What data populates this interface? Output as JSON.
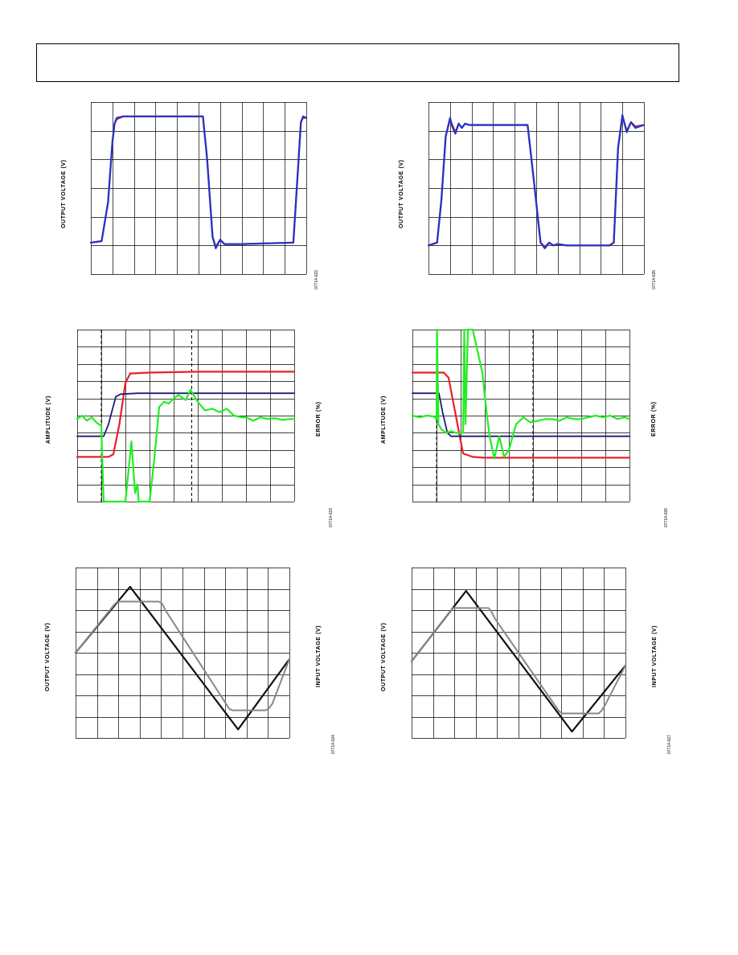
{
  "page": {
    "header": ""
  },
  "colors": {
    "red": "#e8202a",
    "blue": "#2233cc",
    "navy": "#1a1f6e",
    "green": "#22ee22",
    "black": "#111111",
    "gray": "#888888",
    "grid": "#000000"
  },
  "chart_data": [
    {
      "type": "line",
      "panel": "step-response-left",
      "ylabel": "OUTPUT VOLTAGE (V)",
      "figure_id": "07714-022",
      "grid": true,
      "grid_divisions": [
        10,
        6
      ],
      "xlim": [
        0,
        10
      ],
      "ylim": [
        0,
        6
      ],
      "series": [
        {
          "color": "red",
          "x": [
            0,
            0.5,
            0.8,
            1.0,
            1.1,
            1.2,
            1.5,
            5.2,
            5.4,
            5.65,
            5.8,
            6.0,
            6.2,
            6.4,
            7.0,
            9.4,
            9.6,
            9.75,
            9.85,
            10
          ],
          "y": [
            1.1,
            1.15,
            2.5,
            4.6,
            5.25,
            5.4,
            5.5,
            5.5,
            4.0,
            1.3,
            0.95,
            1.2,
            1.05,
            1.05,
            1.05,
            1.1,
            3.5,
            5.3,
            5.45,
            5.45
          ]
        },
        {
          "color": "blue",
          "x": [
            0,
            0.5,
            0.8,
            1.0,
            1.1,
            1.2,
            1.5,
            5.2,
            5.4,
            5.65,
            5.8,
            6.0,
            6.2,
            6.4,
            7.0,
            9.4,
            9.6,
            9.75,
            9.85,
            10
          ],
          "y": [
            1.1,
            1.15,
            2.5,
            4.6,
            5.25,
            5.45,
            5.5,
            5.5,
            4.0,
            1.3,
            0.9,
            1.2,
            1.05,
            1.05,
            1.05,
            1.1,
            3.5,
            5.3,
            5.5,
            5.45
          ]
        }
      ]
    },
    {
      "type": "line",
      "panel": "step-response-right",
      "ylabel": "OUTPUT VOLTAGE (V)",
      "figure_id": "07714-025",
      "grid": true,
      "grid_divisions": [
        10,
        6
      ],
      "xlim": [
        0,
        10
      ],
      "ylim": [
        0,
        6
      ],
      "series": [
        {
          "color": "red",
          "x": [
            0,
            0.4,
            0.6,
            0.8,
            1.0,
            1.1,
            1.25,
            1.4,
            1.55,
            1.7,
            1.9,
            2.2,
            4.6,
            4.9,
            5.2,
            5.4,
            5.6,
            5.8,
            6.0,
            6.4,
            8.4,
            8.6,
            8.8,
            9.0,
            9.2,
            9.4,
            9.6,
            10
          ],
          "y": [
            1.0,
            1.1,
            2.6,
            4.8,
            5.4,
            5.2,
            4.95,
            5.25,
            5.1,
            5.25,
            5.2,
            5.2,
            5.2,
            3.2,
            1.1,
            0.95,
            1.1,
            1.0,
            1.05,
            1.0,
            1.0,
            1.1,
            4.4,
            5.5,
            5.0,
            5.3,
            5.15,
            5.2
          ]
        },
        {
          "color": "blue",
          "x": [
            0,
            0.4,
            0.6,
            0.8,
            1.0,
            1.1,
            1.25,
            1.4,
            1.55,
            1.7,
            1.9,
            2.2,
            4.6,
            4.9,
            5.2,
            5.4,
            5.6,
            5.8,
            6.0,
            6.4,
            8.4,
            8.6,
            8.8,
            9.0,
            9.2,
            9.4,
            9.6,
            10
          ],
          "y": [
            1.0,
            1.1,
            2.6,
            4.8,
            5.45,
            5.15,
            4.9,
            5.25,
            5.1,
            5.25,
            5.2,
            5.2,
            5.2,
            3.2,
            1.1,
            0.9,
            1.1,
            1.0,
            1.05,
            1.0,
            1.0,
            1.1,
            4.4,
            5.55,
            4.95,
            5.3,
            5.1,
            5.2
          ]
        }
      ]
    },
    {
      "type": "line",
      "panel": "settling-left",
      "ylabel": "AMPLITUDE (V)",
      "y2label": "ERROR (%)",
      "figure_id": "07714-023",
      "grid": true,
      "grid_divisions": [
        9,
        10
      ],
      "xlim": [
        0,
        9
      ],
      "ylim": [
        0,
        10
      ],
      "markers_dashed_x": [
        1.0,
        4.75
      ],
      "series": [
        {
          "color": "red",
          "x": [
            0,
            1.3,
            1.5,
            1.75,
            2.0,
            2.2,
            3.0,
            5.0,
            9
          ],
          "y": [
            2.6,
            2.6,
            2.75,
            4.5,
            6.9,
            7.45,
            7.5,
            7.55,
            7.55
          ]
        },
        {
          "color": "navy",
          "x": [
            0,
            1.1,
            1.3,
            1.6,
            1.8,
            2.5,
            4.0,
            9
          ],
          "y": [
            3.8,
            3.8,
            4.5,
            6.1,
            6.25,
            6.3,
            6.3,
            6.3
          ]
        },
        {
          "color": "green",
          "x": [
            0,
            0.2,
            0.4,
            0.6,
            0.8,
            1.0,
            1.05,
            1.1,
            1.2,
            1.5,
            2.0,
            2.25,
            2.4,
            2.5,
            2.55,
            2.7,
            2.85,
            3.0,
            3.2,
            3.4,
            3.6,
            3.8,
            4.0,
            4.2,
            4.5,
            4.7,
            5.0,
            5.3,
            5.6,
            5.9,
            6.2,
            6.5,
            6.8,
            7.0,
            7.3,
            7.6,
            7.9,
            8.2,
            8.5,
            8.8,
            9
          ],
          "y": [
            4.8,
            5.0,
            4.7,
            4.9,
            4.6,
            4.4,
            2.0,
            0,
            0,
            0,
            0,
            3.5,
            0.5,
            1.0,
            0,
            0,
            0,
            0,
            2.5,
            5.5,
            5.8,
            5.7,
            6.0,
            6.2,
            5.9,
            6.5,
            5.8,
            5.3,
            5.4,
            5.2,
            5.4,
            5.0,
            4.9,
            4.9,
            4.7,
            4.9,
            4.8,
            4.85,
            4.75,
            4.8,
            4.8
          ]
        }
      ]
    },
    {
      "type": "line",
      "panel": "settling-right",
      "ylabel": "AMPLITUDE (V)",
      "y2label": "ERROR (%)",
      "figure_id": "07714-026",
      "grid": true,
      "grid_divisions": [
        9,
        10
      ],
      "xlim": [
        0,
        9
      ],
      "ylim": [
        0,
        10
      ],
      "markers_dashed_x": [
        1.0,
        5.0
      ],
      "series": [
        {
          "color": "red",
          "x": [
            0,
            1.3,
            1.5,
            1.8,
            2.1,
            2.5,
            3.0,
            9
          ],
          "y": [
            7.5,
            7.5,
            7.2,
            5.0,
            2.8,
            2.6,
            2.55,
            2.55
          ]
        },
        {
          "color": "navy",
          "x": [
            0,
            1.1,
            1.25,
            1.45,
            1.6,
            2.0,
            3.0,
            9
          ],
          "y": [
            6.3,
            6.3,
            5.2,
            4.0,
            3.8,
            3.8,
            3.8,
            3.8
          ]
        },
        {
          "color": "green",
          "x": [
            0,
            0.3,
            0.6,
            0.9,
            1.0,
            1.02,
            1.08,
            1.2,
            1.4,
            1.6,
            1.8,
            2.1,
            2.15,
            2.2,
            2.3,
            2.5,
            2.9,
            3.05,
            3.2,
            3.4,
            3.6,
            3.8,
            4.0,
            4.3,
            4.6,
            4.9,
            5.2,
            5.5,
            5.8,
            6.1,
            6.4,
            6.7,
            7.0,
            7.3,
            7.6,
            7.9,
            8.2,
            8.5,
            8.8,
            9
          ],
          "y": [
            5.0,
            4.9,
            5.0,
            4.95,
            4.8,
            10,
            4.5,
            4.2,
            4.0,
            4.1,
            4.0,
            4.0,
            10,
            4.5,
            10,
            10,
            7.5,
            5.5,
            3.8,
            2.5,
            3.8,
            2.6,
            3.0,
            4.5,
            4.9,
            4.6,
            4.7,
            4.8,
            4.8,
            4.7,
            4.9,
            4.8,
            4.8,
            4.9,
            5.0,
            4.9,
            5.0,
            4.8,
            4.9,
            4.8
          ]
        }
      ]
    },
    {
      "type": "line",
      "panel": "overdrive-left",
      "ylabel": "OUTPUT VOLTAGE (V)",
      "y2label": "INPUT VOLTAGE (V)",
      "figure_id": "07714-024",
      "grid": true,
      "grid_divisions": [
        10,
        8
      ],
      "xlim": [
        0,
        10
      ],
      "ylim": [
        0,
        8
      ],
      "series": [
        {
          "color": "black",
          "x": [
            0,
            2.55,
            7.6,
            10
          ],
          "y": [
            4.0,
            7.1,
            0.4,
            3.7
          ]
        },
        {
          "color": "gray",
          "x": [
            0,
            1.8,
            1.95,
            2.1,
            3.9,
            4.05,
            4.2,
            7.2,
            7.35,
            7.5,
            8.9,
            9.05,
            9.2,
            10
          ],
          "y": [
            4.0,
            6.25,
            6.4,
            6.4,
            6.4,
            6.3,
            6.0,
            1.35,
            1.3,
            1.3,
            1.3,
            1.4,
            1.6,
            3.7
          ]
        }
      ]
    },
    {
      "type": "line",
      "panel": "overdrive-right",
      "ylabel": "OUTPUT VOLTAGE (V)",
      "y2label": "INPUT VOLTAGE (V)",
      "figure_id": "07714-027",
      "grid": true,
      "grid_divisions": [
        10,
        8
      ],
      "xlim": [
        0,
        10
      ],
      "ylim": [
        0,
        8
      ],
      "series": [
        {
          "color": "black",
          "x": [
            0,
            2.55,
            7.5,
            10
          ],
          "y": [
            3.6,
            6.9,
            0.3,
            3.4
          ]
        },
        {
          "color": "gray",
          "x": [
            0,
            1.8,
            1.95,
            2.1,
            3.6,
            3.75,
            3.9,
            6.9,
            7.05,
            7.2,
            8.75,
            8.9,
            9.05,
            10
          ],
          "y": [
            3.6,
            5.95,
            6.1,
            6.1,
            6.1,
            5.9,
            5.6,
            1.25,
            1.15,
            1.15,
            1.15,
            1.3,
            1.55,
            3.4
          ]
        }
      ]
    }
  ]
}
